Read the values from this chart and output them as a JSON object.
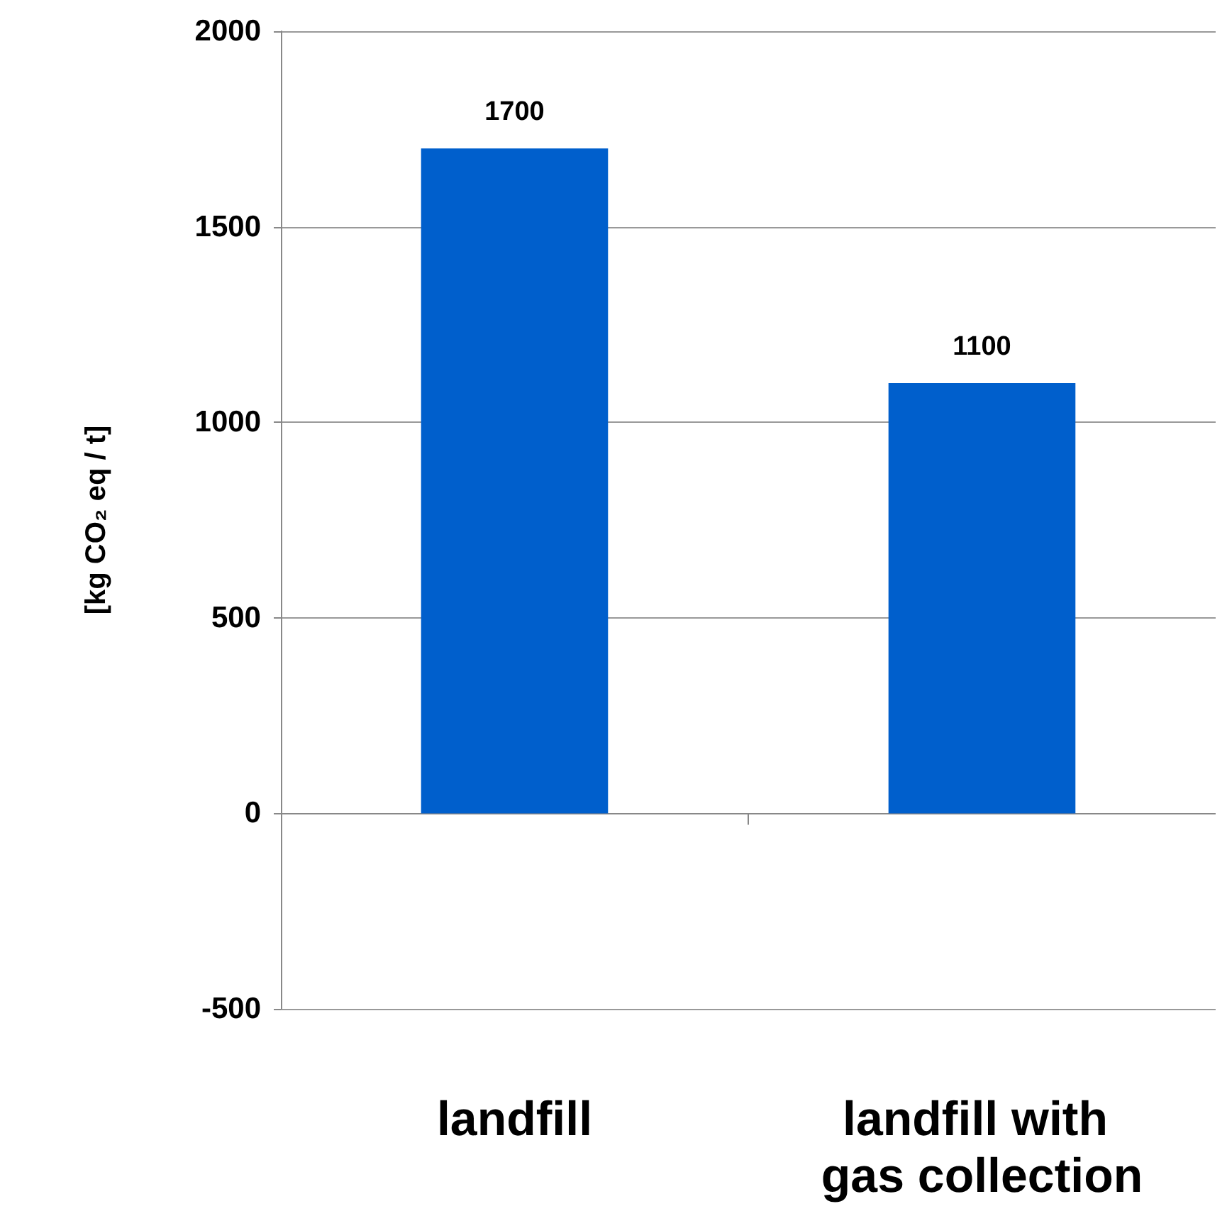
{
  "chart_data": {
    "type": "bar",
    "ylabel": "[kg CO₂ eq / t]",
    "categories": [
      "landfill",
      "landfill with gas collection"
    ],
    "values": [
      1700,
      1100
    ],
    "color": "#005fcc",
    "data_labels": true,
    "ylim": [
      -500,
      2000
    ],
    "yticks": [
      -500,
      0,
      500,
      1000,
      1500,
      2000
    ],
    "grid": "y"
  }
}
